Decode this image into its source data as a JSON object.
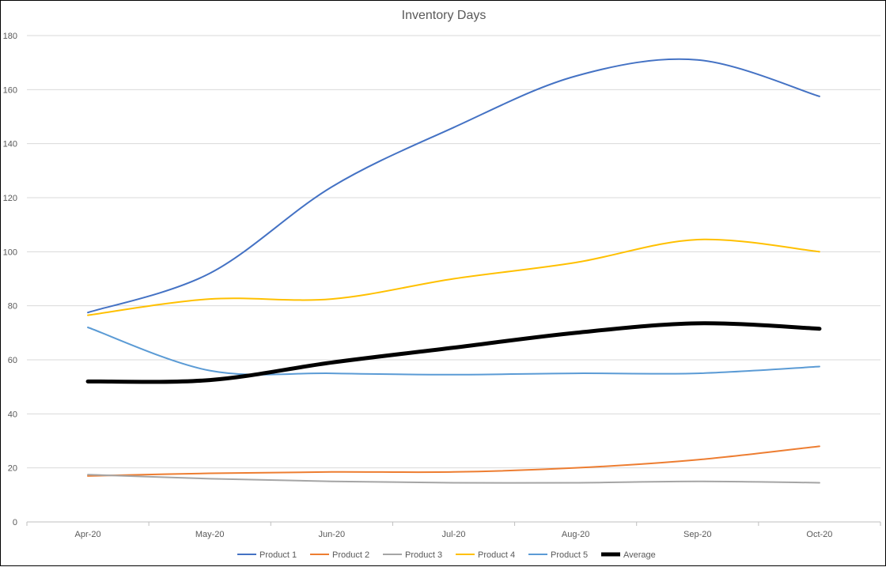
{
  "chart_data": {
    "type": "line",
    "title": "Inventory Days",
    "categories": [
      "Apr-20",
      "May-20",
      "Jun-20",
      "Jul-20",
      "Aug-20",
      "Sep-20",
      "Oct-20"
    ],
    "ylim": [
      0,
      180
    ],
    "yticks": [
      0,
      20,
      40,
      60,
      80,
      100,
      120,
      140,
      160,
      180
    ],
    "grid": "horizontal",
    "legend_position": "bottom",
    "series": [
      {
        "name": "Product 1",
        "color": "#4472C4",
        "values": [
          77.5,
          92,
          124,
          146,
          165,
          171,
          157.5
        ]
      },
      {
        "name": "Product 2",
        "color": "#ED7D31",
        "values": [
          17,
          18,
          18.5,
          18.5,
          20,
          23,
          28
        ]
      },
      {
        "name": "Product 3",
        "color": "#A5A5A5",
        "values": [
          17.5,
          16,
          15,
          14.5,
          14.5,
          15,
          14.5
        ]
      },
      {
        "name": "Product 4",
        "color": "#FFC000",
        "values": [
          76.5,
          82.5,
          82.5,
          90,
          96,
          104.5,
          100
        ]
      },
      {
        "name": "Product 5",
        "color": "#5B9BD5",
        "values": [
          72,
          56,
          55,
          54.5,
          55,
          55,
          57.5
        ]
      },
      {
        "name": "Average",
        "color": "#000000",
        "values": [
          52,
          52.5,
          59,
          64.5,
          70,
          73.5,
          71.5
        ]
      }
    ]
  }
}
